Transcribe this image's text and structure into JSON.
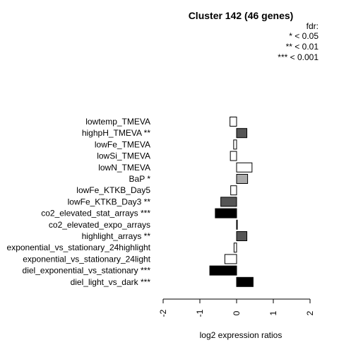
{
  "chart_data": {
    "type": "bar",
    "orientation": "horizontal",
    "title": "Cluster 142 (46 genes)",
    "xlabel": "log2 expression ratios",
    "ylabel": "",
    "xlim": [
      -2,
      2
    ],
    "xticks": [
      "-2",
      "-1",
      "0",
      "1",
      "2"
    ],
    "grid": false,
    "legend": {
      "placement": "top-right",
      "title": "fdr:",
      "entries": [
        "* < 0.05",
        "** < 0.01",
        "*** < 0.001"
      ]
    },
    "categories": [
      "lowtemp_TMEVA",
      "highpH_TMEVA **",
      "lowFe_TMEVA",
      "lowSi_TMEVA",
      "lowN_TMEVA",
      "BaP *",
      "lowFe_KTKB_Day5",
      "lowFe_KTKB_Day3 **",
      "co2_elevated_stat_arrays ***",
      "co2_elevated_expo_arrays",
      "highlight_arrays **",
      "exponential_vs_stationary_24highlight",
      "exponential_vs_stationary_24light",
      "diel_exponential_vs_stationary ***",
      "diel_light_vs_dark ***"
    ],
    "values": [
      -0.18,
      0.28,
      -0.08,
      -0.17,
      0.42,
      0.3,
      -0.16,
      -0.43,
      -0.58,
      0.01,
      0.28,
      -0.07,
      -0.32,
      -0.73,
      0.45
    ],
    "colors": {
      "none": "#ffffff",
      "fdr_0.05": "#aaaaaa",
      "fdr_0.01": "#555555",
      "fdr_0.001": "#000000",
      "stroke": "#000000"
    },
    "significance": [
      "none",
      "fdr_0.01",
      "none",
      "none",
      "none",
      "fdr_0.05",
      "none",
      "fdr_0.01",
      "fdr_0.001",
      "none",
      "fdr_0.01",
      "none",
      "none",
      "fdr_0.001",
      "fdr_0.001"
    ]
  }
}
